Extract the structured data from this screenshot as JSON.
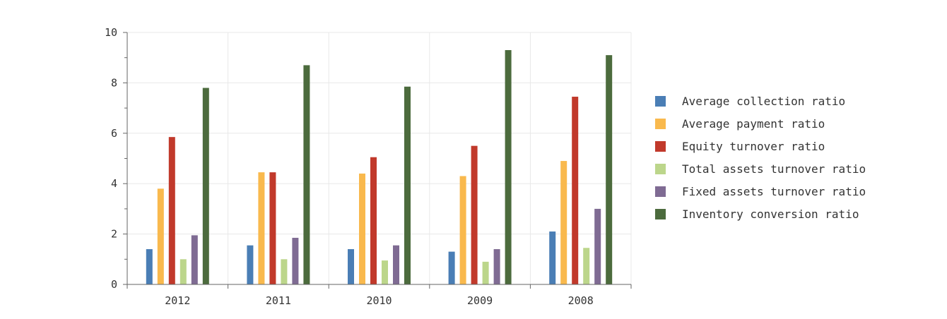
{
  "chart_data": {
    "type": "bar",
    "categories": [
      "2012",
      "2011",
      "2010",
      "2009",
      "2008"
    ],
    "ylim": [
      0,
      10
    ],
    "yticks": [
      0,
      2,
      4,
      6,
      8,
      10
    ],
    "grid": true,
    "legend_position": "right",
    "series": [
      {
        "name": "Average collection ratio",
        "color": "#4a7eb5",
        "values": [
          1.4,
          1.55,
          1.4,
          1.3,
          2.1
        ]
      },
      {
        "name": "Average payment ratio",
        "color": "#f9b94d",
        "values": [
          3.8,
          4.45,
          4.4,
          4.3,
          4.9
        ]
      },
      {
        "name": "Equity turnover ratio",
        "color": "#c1392b",
        "values": [
          5.85,
          4.45,
          5.05,
          5.5,
          7.45
        ]
      },
      {
        "name": "Total assets turnover ratio",
        "color": "#bcd68b",
        "values": [
          1.0,
          1.0,
          0.95,
          0.9,
          1.45
        ]
      },
      {
        "name": "Fixed assets turnover ratio",
        "color": "#7f6b93",
        "values": [
          1.95,
          1.85,
          1.55,
          1.4,
          3.0
        ]
      },
      {
        "name": "Inventory conversion ratio",
        "color": "#4c6b3d",
        "values": [
          7.8,
          8.7,
          7.85,
          9.3,
          9.1
        ]
      }
    ]
  }
}
